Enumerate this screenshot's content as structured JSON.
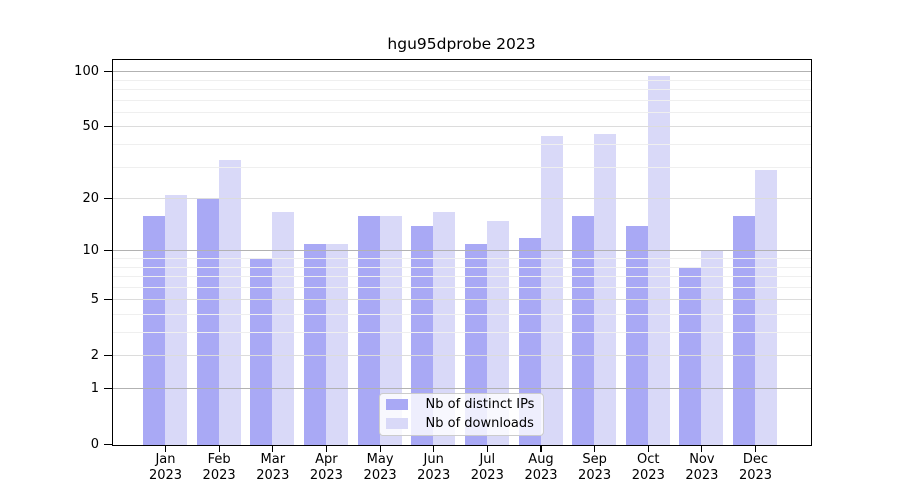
{
  "chart_data": {
    "type": "bar",
    "title": "hgu95dprobe 2023",
    "categories": [
      "Jan 2023",
      "Feb 2023",
      "Mar 2023",
      "Apr 2023",
      "May 2023",
      "Jun 2023",
      "Jul 2023",
      "Aug 2023",
      "Sep 2023",
      "Oct 2023",
      "Nov 2023",
      "Dec 2023"
    ],
    "series": [
      {
        "name": "Nb of distinct IPs",
        "color": "#a9a9f5",
        "values": [
          16,
          20,
          9,
          11,
          16,
          14,
          11,
          12,
          16,
          14,
          8,
          16
        ]
      },
      {
        "name": "Nb of downloads",
        "color": "#d9d9f8",
        "values": [
          21,
          33,
          17,
          11,
          16,
          17,
          15,
          45,
          46,
          95,
          10,
          29
        ]
      }
    ],
    "yscale": "log1p",
    "ylim": [
      0,
      115
    ],
    "yticks": [
      0,
      1,
      2,
      5,
      10,
      20,
      50,
      100
    ],
    "minor_gridlines": [
      3,
      4,
      6,
      7,
      8,
      9,
      30,
      40,
      60,
      70,
      80,
      90
    ],
    "grid": true,
    "legend_position": "lower center",
    "colors": {
      "grid_decade": "#b2b2b2",
      "grid_major": "#dcdcdc",
      "grid_minor": "#efefef",
      "spine": "#000000",
      "background": "#ffffff"
    }
  }
}
